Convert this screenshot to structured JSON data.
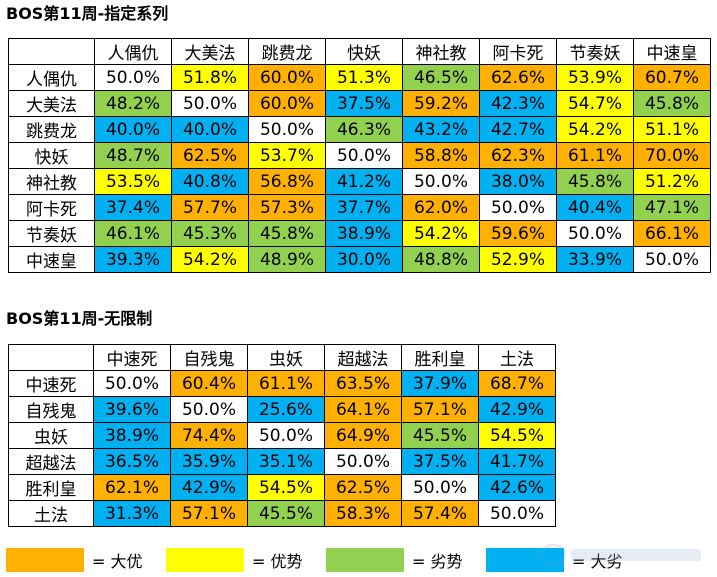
{
  "colors": {
    "big_adv": "#FFB000",
    "adv": "#FFFF00",
    "dis": "#92D050",
    "big_dis": "#00B0F0",
    "even": "#FFFFFF"
  },
  "table1": {
    "title": "BOS第11周-指定系列",
    "headers": [
      "人偶仇",
      "大美法",
      "跳费龙",
      "快妖",
      "神社教",
      "阿卡死",
      "节奏妖",
      "中速皇"
    ],
    "rows": [
      {
        "name": "人偶仇",
        "cells": [
          {
            "v": "50.0%",
            "c": "even"
          },
          {
            "v": "51.8%",
            "c": "adv"
          },
          {
            "v": "60.0%",
            "c": "big_adv"
          },
          {
            "v": "51.3%",
            "c": "adv"
          },
          {
            "v": "46.5%",
            "c": "dis"
          },
          {
            "v": "62.6%",
            "c": "big_adv"
          },
          {
            "v": "53.9%",
            "c": "adv"
          },
          {
            "v": "60.7%",
            "c": "big_adv"
          }
        ]
      },
      {
        "name": "大美法",
        "cells": [
          {
            "v": "48.2%",
            "c": "dis"
          },
          {
            "v": "50.0%",
            "c": "even"
          },
          {
            "v": "60.0%",
            "c": "big_adv"
          },
          {
            "v": "37.5%",
            "c": "big_dis"
          },
          {
            "v": "59.2%",
            "c": "big_adv"
          },
          {
            "v": "42.3%",
            "c": "big_dis"
          },
          {
            "v": "54.7%",
            "c": "adv"
          },
          {
            "v": "45.8%",
            "c": "dis"
          }
        ]
      },
      {
        "name": "跳费龙",
        "cells": [
          {
            "v": "40.0%",
            "c": "big_dis"
          },
          {
            "v": "40.0%",
            "c": "big_dis"
          },
          {
            "v": "50.0%",
            "c": "even"
          },
          {
            "v": "46.3%",
            "c": "dis"
          },
          {
            "v": "43.2%",
            "c": "big_dis"
          },
          {
            "v": "42.7%",
            "c": "big_dis"
          },
          {
            "v": "54.2%",
            "c": "adv"
          },
          {
            "v": "51.1%",
            "c": "adv"
          }
        ]
      },
      {
        "name": "快妖",
        "cells": [
          {
            "v": "48.7%",
            "c": "dis"
          },
          {
            "v": "62.5%",
            "c": "big_adv"
          },
          {
            "v": "53.7%",
            "c": "adv"
          },
          {
            "v": "50.0%",
            "c": "even"
          },
          {
            "v": "58.8%",
            "c": "big_adv"
          },
          {
            "v": "62.3%",
            "c": "big_adv"
          },
          {
            "v": "61.1%",
            "c": "big_adv"
          },
          {
            "v": "70.0%",
            "c": "big_adv"
          }
        ]
      },
      {
        "name": "神社教",
        "cells": [
          {
            "v": "53.5%",
            "c": "adv"
          },
          {
            "v": "40.8%",
            "c": "big_dis"
          },
          {
            "v": "56.8%",
            "c": "big_adv"
          },
          {
            "v": "41.2%",
            "c": "big_dis"
          },
          {
            "v": "50.0%",
            "c": "even"
          },
          {
            "v": "38.0%",
            "c": "big_dis"
          },
          {
            "v": "45.8%",
            "c": "dis"
          },
          {
            "v": "51.2%",
            "c": "adv"
          }
        ]
      },
      {
        "name": "阿卡死",
        "cells": [
          {
            "v": "37.4%",
            "c": "big_dis"
          },
          {
            "v": "57.7%",
            "c": "big_adv"
          },
          {
            "v": "57.3%",
            "c": "big_adv"
          },
          {
            "v": "37.7%",
            "c": "big_dis"
          },
          {
            "v": "62.0%",
            "c": "big_adv"
          },
          {
            "v": "50.0%",
            "c": "even"
          },
          {
            "v": "40.4%",
            "c": "big_dis"
          },
          {
            "v": "47.1%",
            "c": "dis"
          }
        ]
      },
      {
        "name": "节奏妖",
        "cells": [
          {
            "v": "46.1%",
            "c": "dis"
          },
          {
            "v": "45.3%",
            "c": "dis"
          },
          {
            "v": "45.8%",
            "c": "dis"
          },
          {
            "v": "38.9%",
            "c": "big_dis"
          },
          {
            "v": "54.2%",
            "c": "adv"
          },
          {
            "v": "59.6%",
            "c": "big_adv"
          },
          {
            "v": "50.0%",
            "c": "even"
          },
          {
            "v": "66.1%",
            "c": "big_adv"
          }
        ]
      },
      {
        "name": "中速皇",
        "cells": [
          {
            "v": "39.3%",
            "c": "big_dis"
          },
          {
            "v": "54.2%",
            "c": "adv"
          },
          {
            "v": "48.9%",
            "c": "dis"
          },
          {
            "v": "30.0%",
            "c": "big_dis"
          },
          {
            "v": "48.8%",
            "c": "dis"
          },
          {
            "v": "52.9%",
            "c": "adv"
          },
          {
            "v": "33.9%",
            "c": "big_dis"
          },
          {
            "v": "50.0%",
            "c": "even"
          }
        ]
      }
    ]
  },
  "table2": {
    "title": "BOS第11周-无限制",
    "headers": [
      "中速死",
      "自残鬼",
      "虫妖",
      "超越法",
      "胜利皇",
      "土法"
    ],
    "rows": [
      {
        "name": "中速死",
        "cells": [
          {
            "v": "50.0%",
            "c": "even"
          },
          {
            "v": "60.4%",
            "c": "big_adv"
          },
          {
            "v": "61.1%",
            "c": "big_adv"
          },
          {
            "v": "63.5%",
            "c": "big_adv"
          },
          {
            "v": "37.9%",
            "c": "big_dis"
          },
          {
            "v": "68.7%",
            "c": "big_adv"
          }
        ]
      },
      {
        "name": "自残鬼",
        "cells": [
          {
            "v": "39.6%",
            "c": "big_dis"
          },
          {
            "v": "50.0%",
            "c": "even"
          },
          {
            "v": "25.6%",
            "c": "big_dis"
          },
          {
            "v": "64.1%",
            "c": "big_adv"
          },
          {
            "v": "57.1%",
            "c": "big_adv"
          },
          {
            "v": "42.9%",
            "c": "big_dis"
          }
        ]
      },
      {
        "name": "虫妖",
        "cells": [
          {
            "v": "38.9%",
            "c": "big_dis"
          },
          {
            "v": "74.4%",
            "c": "big_adv"
          },
          {
            "v": "50.0%",
            "c": "even"
          },
          {
            "v": "64.9%",
            "c": "big_adv"
          },
          {
            "v": "45.5%",
            "c": "dis"
          },
          {
            "v": "54.5%",
            "c": "adv"
          }
        ]
      },
      {
        "name": "超越法",
        "cells": [
          {
            "v": "36.5%",
            "c": "big_dis"
          },
          {
            "v": "35.9%",
            "c": "big_dis"
          },
          {
            "v": "35.1%",
            "c": "big_dis"
          },
          {
            "v": "50.0%",
            "c": "even"
          },
          {
            "v": "37.5%",
            "c": "big_dis"
          },
          {
            "v": "41.7%",
            "c": "big_dis"
          }
        ]
      },
      {
        "name": "胜利皇",
        "cells": [
          {
            "v": "62.1%",
            "c": "big_adv"
          },
          {
            "v": "42.9%",
            "c": "big_dis"
          },
          {
            "v": "54.5%",
            "c": "adv"
          },
          {
            "v": "62.5%",
            "c": "big_adv"
          },
          {
            "v": "50.0%",
            "c": "even"
          },
          {
            "v": "42.6%",
            "c": "big_dis"
          }
        ]
      },
      {
        "name": "土法",
        "cells": [
          {
            "v": "31.3%",
            "c": "big_dis"
          },
          {
            "v": "57.1%",
            "c": "big_adv"
          },
          {
            "v": "45.5%",
            "c": "dis"
          },
          {
            "v": "58.3%",
            "c": "big_adv"
          },
          {
            "v": "57.4%",
            "c": "big_adv"
          },
          {
            "v": "50.0%",
            "c": "even"
          }
        ]
      }
    ]
  },
  "legend": [
    {
      "color": "big_adv",
      "label": "= 大优"
    },
    {
      "color": "adv",
      "label": "= 优势"
    },
    {
      "color": "dis",
      "label": "= 劣势"
    },
    {
      "color": "big_dis",
      "label": "= 大劣"
    }
  ]
}
